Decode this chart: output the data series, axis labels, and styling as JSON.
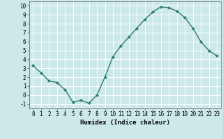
{
  "x": [
    0,
    1,
    2,
    3,
    4,
    5,
    6,
    7,
    8,
    9,
    10,
    11,
    12,
    13,
    14,
    15,
    16,
    17,
    18,
    19,
    20,
    21,
    22,
    23
  ],
  "y": [
    3.3,
    2.5,
    1.6,
    1.4,
    0.6,
    -0.8,
    -0.6,
    -0.9,
    0.0,
    2.0,
    4.3,
    5.5,
    6.5,
    7.5,
    8.5,
    9.3,
    9.9,
    9.8,
    9.4,
    8.7,
    7.5,
    6.0,
    5.0,
    4.4
  ],
  "line_color": "#2e7d6e",
  "marker": "D",
  "marker_size": 2.0,
  "linewidth": 1.0,
  "bg_color": "#cce8e8",
  "grid_color": "#ffffff",
  "xlabel": "Humidex (Indice chaleur)",
  "xlim": [
    -0.5,
    23.5
  ],
  "ylim": [
    -1.5,
    10.5
  ],
  "yticks": [
    -1,
    0,
    1,
    2,
    3,
    4,
    5,
    6,
    7,
    8,
    9,
    10
  ],
  "xticks": [
    0,
    1,
    2,
    3,
    4,
    5,
    6,
    7,
    8,
    9,
    10,
    11,
    12,
    13,
    14,
    15,
    16,
    17,
    18,
    19,
    20,
    21,
    22,
    23
  ],
  "label_fontsize": 6.5,
  "tick_fontsize": 5.5
}
